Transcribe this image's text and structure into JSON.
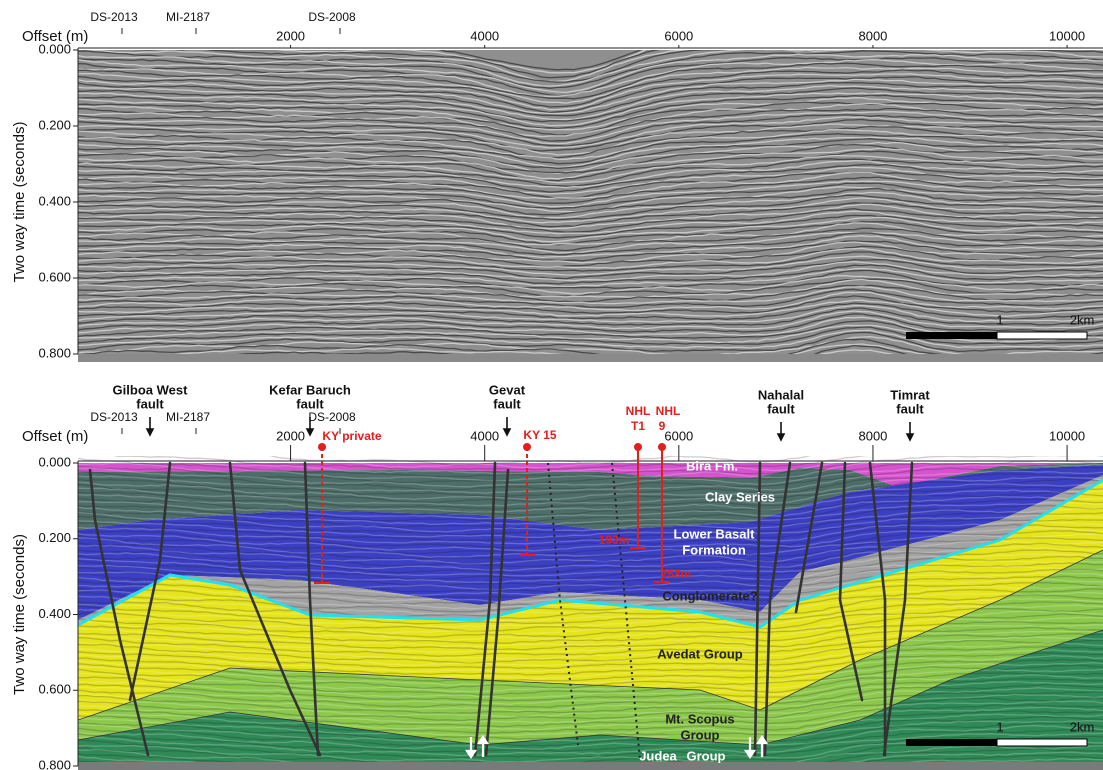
{
  "top_panel": {
    "x_axis_label": "Offset (m)",
    "y_axis_label": "Two way time (seconds)",
    "xlim": [
      -190,
      10370
    ],
    "ylim": [
      0,
      0.8
    ],
    "xticks": [
      2000,
      4000,
      6000,
      8000,
      10000
    ],
    "yticks": [
      {
        "value": 0,
        "label": "0.000"
      },
      {
        "value": 0.2,
        "label": "0.200"
      },
      {
        "value": 0.4,
        "label": "0.400"
      },
      {
        "value": 0.6,
        "label": "0.600"
      },
      {
        "value": 0.8,
        "label": "0.800"
      }
    ],
    "seismic_lines": [
      "DS-2013",
      "MI-2187",
      "DS-2008"
    ],
    "scale_bar": [
      "1",
      "2km"
    ]
  },
  "bottom_panel": {
    "x_axis_label": "Offset (m)",
    "y_axis_label": "Two way time (seconds)",
    "xlim": [
      -190,
      10370
    ],
    "ylim": [
      0,
      0.8
    ],
    "xticks": [
      2000,
      4000,
      6000,
      8000,
      10000
    ],
    "yticks": [
      {
        "value": 0,
        "label": "0.000"
      },
      {
        "value": 0.2,
        "label": "0.200"
      },
      {
        "value": 0.4,
        "label": "0.400"
      },
      {
        "value": 0.6,
        "label": "0.600"
      },
      {
        "value": 0.8,
        "label": "0.800"
      }
    ],
    "seismic_lines": [
      "DS-2013",
      "MI-2187",
      "DS-2008"
    ],
    "faults": [
      [
        "Gilboa West",
        "fault"
      ],
      [
        "Kefar Baruch",
        "fault"
      ],
      [
        "Gevat",
        "fault"
      ],
      [
        "Nahalal",
        "fault"
      ],
      [
        "Timrat",
        "fault"
      ]
    ],
    "wells": [
      {
        "name": [
          "KY private"
        ]
      },
      {
        "name": [
          "KY 15"
        ]
      },
      {
        "name": [
          "NHL",
          "T1"
        ],
        "depth": "193m"
      },
      {
        "name": [
          "NHL",
          "9"
        ],
        "depth": "258m"
      }
    ],
    "formations": [
      [
        "Bira Fm."
      ],
      [
        "Clay Series"
      ],
      [
        "Lower Basalt",
        "Formation"
      ],
      [
        "Conglomerate?"
      ],
      [
        "Avedat Group"
      ],
      [
        "Mt. Scopus",
        "Group"
      ],
      [
        "Judea",
        "Group"
      ]
    ],
    "scale_bar": [
      "1",
      "2km"
    ]
  }
}
